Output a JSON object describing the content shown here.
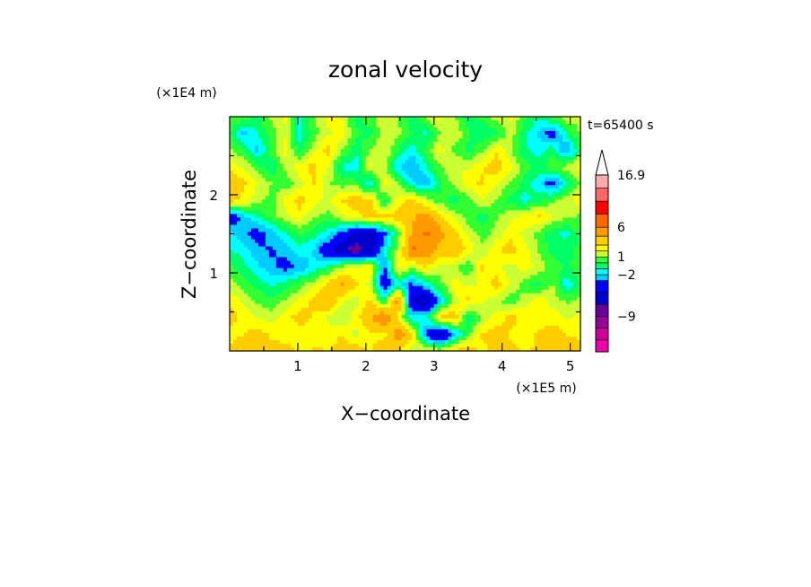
{
  "chart_data": {
    "type": "heatmap",
    "title": "zonal velocity",
    "xlabel": "X−coordinate",
    "ylabel": "Z−coordinate",
    "x_scale_label": "(×1E5 m)",
    "y_scale_label": "(×1E4 m)",
    "time_label": "t=65400 s",
    "x_ticks": [
      "1",
      "2",
      "3",
      "4",
      "5"
    ],
    "x_tick_values": [
      1,
      2,
      3,
      4,
      5
    ],
    "y_ticks": [
      "1",
      "2"
    ],
    "y_tick_values": [
      1,
      2
    ],
    "xlim": [
      0,
      5.15
    ],
    "ylim": [
      0,
      3.0
    ],
    "colorbar": {
      "labels": [
        "16.9",
        "6",
        "1",
        "−2",
        "−9"
      ],
      "label_values": [
        16.9,
        6,
        1,
        -2,
        -9
      ],
      "levels": [
        -13,
        -11,
        -9,
        -7,
        -5,
        -3,
        -2,
        -1,
        0,
        1,
        2,
        3,
        4.5,
        6,
        8.5,
        11,
        13.5,
        16.9
      ],
      "colors": [
        "#ee00aa",
        "#cc0099",
        "#990099",
        "#660099",
        "#0000cc",
        "#0000ff",
        "#00ccff",
        "#00ffff",
        "#00ff66",
        "#33ff33",
        "#ccff33",
        "#ffff00",
        "#ffcc00",
        "#ff9900",
        "#ff6600",
        "#ff0000",
        "#ff6666",
        "#ffaaaa"
      ],
      "extend": "max"
    },
    "field_values": [
      [
        0.8,
        1.0,
        -0.4,
        1.4,
        2.2,
        -1.3,
        1.0,
        2.4,
        1.9,
        -0.5,
        0.6,
        2.0,
        0.8,
        -0.8,
        1.2,
        2.3,
        1.1,
        -0.6,
        0.4,
        1.5,
        2.1,
        0.3,
        -0.9,
        0.7,
        1.8,
        1.0
      ],
      [
        0.3,
        -2.6,
        -0.9,
        0.5,
        1.8,
        -1.4,
        0.4,
        1.7,
        2.6,
        0.2,
        -0.4,
        1.6,
        1.3,
        0.0,
        -1.2,
        0.9,
        2.0,
        0.2,
        -1.0,
        -0.3,
        1.7,
        -0.6,
        -2.2,
        -4.0,
        -0.6,
        1.2
      ],
      [
        1.2,
        0.2,
        -2.5,
        0.6,
        2.6,
        -0.7,
        1.8,
        3.6,
        0.9,
        -0.6,
        1.0,
        2.2,
        -0.2,
        -1.5,
        0.4,
        2.5,
        0.7,
        -0.4,
        0.8,
        2.9,
        1.1,
        -0.8,
        -1.6,
        -0.2,
        -3.5,
        0.3
      ],
      [
        2.6,
        1.8,
        0.4,
        -0.9,
        1.2,
        2.8,
        3.4,
        2.0,
        -1.0,
        -1.8,
        2.3,
        1.5,
        -2.0,
        -3.2,
        -1.1,
        0.9,
        2.1,
        1.8,
        2.8,
        3.8,
        2.3,
        0.6,
        -0.5,
        0.9,
        1.4,
        2.6
      ],
      [
        4.6,
        3.2,
        2.0,
        1.0,
        0.3,
        1.6,
        3.1,
        1.2,
        0.4,
        0.6,
        -2.2,
        2.6,
        1.0,
        -1.8,
        -2.8,
        -0.2,
        1.4,
        2.6,
        3.2,
        2.1,
        1.0,
        -0.4,
        -1.6,
        -4.2,
        -0.8,
        1.2
      ],
      [
        3.8,
        2.6,
        1.4,
        0.6,
        2.4,
        3.6,
        2.3,
        1.8,
        3.2,
        3.9,
        3.4,
        -0.6,
        2.4,
        3.6,
        1.6,
        0.4,
        -0.6,
        0.6,
        1.9,
        0.9,
        -0.5,
        -1.4,
        -0.3,
        0.7,
        1.6,
        2.8
      ],
      [
        -4.5,
        -2.4,
        -1.0,
        0.5,
        1.6,
        2.5,
        1.2,
        0.6,
        1.7,
        2.4,
        3.8,
        3.4,
        3.6,
        4.2,
        5.4,
        3.4,
        1.8,
        0.4,
        -0.6,
        0.8,
        1.8,
        2.6,
        3.4,
        2.0,
        1.2,
        0.8
      ],
      [
        -1.6,
        -2.8,
        -3.8,
        -2.6,
        -1.2,
        0.2,
        -0.6,
        -1.6,
        -3.4,
        -5.4,
        -6.2,
        -3.6,
        0.4,
        4.8,
        6.2,
        5.2,
        3.4,
        1.8,
        0.6,
        1.4,
        2.6,
        1.8,
        0.6,
        -0.8,
        -1.2,
        0.4
      ],
      [
        -0.8,
        -1.6,
        -2.6,
        -3.2,
        -2.4,
        -1.4,
        -2.2,
        -4.6,
        -6.8,
        -8.0,
        -6.4,
        -2.0,
        1.6,
        6.4,
        5.6,
        3.8,
        4.6,
        2.6,
        1.2,
        2.8,
        3.6,
        2.4,
        1.0,
        -0.4,
        -0.8,
        0.6
      ],
      [
        0.4,
        -0.6,
        -1.8,
        -2.8,
        -3.6,
        -2.8,
        -1.6,
        -0.6,
        1.4,
        2.2,
        3.4,
        -3.4,
        2.8,
        1.4,
        3.0,
        1.6,
        1.0,
        0.2,
        3.2,
        2.2,
        1.4,
        2.6,
        1.6,
        0.6,
        -0.2,
        0.8
      ],
      [
        1.4,
        0.6,
        -0.4,
        -1.2,
        -0.6,
        0.4,
        1.6,
        3.4,
        4.8,
        3.2,
        1.6,
        -4.6,
        -1.6,
        -3.2,
        -1.4,
        0.6,
        2.6,
        1.6,
        2.4,
        3.6,
        1.8,
        0.4,
        -0.4,
        1.2,
        -1.8,
        0.2
      ],
      [
        2.8,
        1.8,
        0.8,
        0.2,
        1.2,
        2.4,
        3.4,
        4.6,
        2.2,
        1.4,
        3.4,
        -0.4,
        5.8,
        -5.4,
        -7.4,
        -2.2,
        1.4,
        3.4,
        2.2,
        1.2,
        0.4,
        1.4,
        2.6,
        1.6,
        0.8,
        1.4
      ],
      [
        3.6,
        2.6,
        2.0,
        1.6,
        2.6,
        3.6,
        2.8,
        1.8,
        1.0,
        2.6,
        4.4,
        6.4,
        2.4,
        -1.8,
        -1.2,
        3.6,
        4.2,
        -1.2,
        1.2,
        2.4,
        3.4,
        2.8,
        2.0,
        2.6,
        1.8,
        2.4
      ],
      [
        2.4,
        3.0,
        3.6,
        2.8,
        2.2,
        2.6,
        2.0,
        2.4,
        3.0,
        1.6,
        2.8,
        2.6,
        5.6,
        3.4,
        -3.8,
        -6.4,
        -2.8,
        0.8,
        3.2,
        3.6,
        2.8,
        2.2,
        3.2,
        3.8,
        3.0,
        2.6
      ],
      [
        3.4,
        4.2,
        3.0,
        3.4,
        3.8,
        2.6,
        3.2,
        3.0,
        3.6,
        3.8,
        2.8,
        4.0,
        3.2,
        1.6,
        2.6,
        1.8,
        3.4,
        3.8,
        2.6,
        3.4,
        3.6,
        2.6,
        3.4,
        3.2,
        3.6,
        4.0
      ]
    ]
  }
}
